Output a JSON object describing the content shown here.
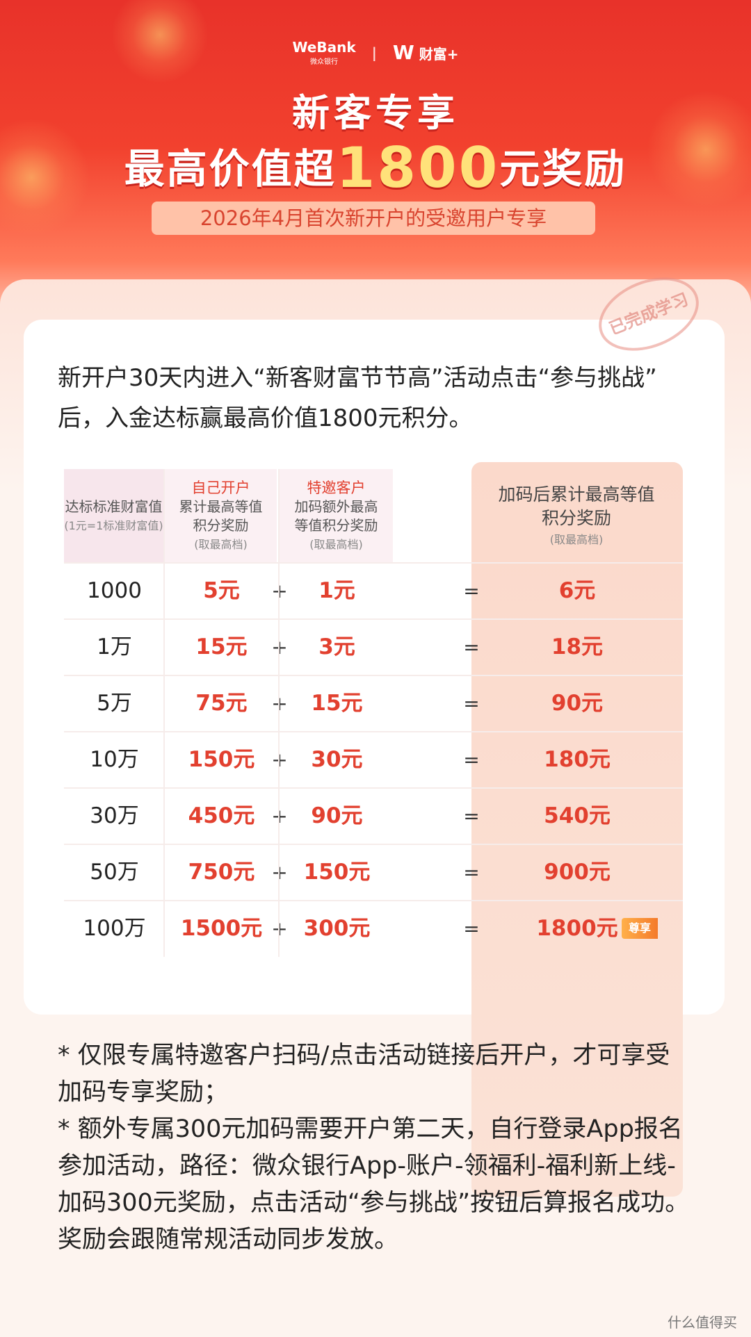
{
  "header": {
    "logo_bank": "WeBank",
    "logo_bank_cn": "微众银行",
    "logo_wealth": "财富+",
    "title": "新客专享",
    "headline_pre": "最高价值超",
    "headline_amount": "1800",
    "headline_post": "元奖励",
    "subtitle": "2026年4月首次新开户的受邀用户专享"
  },
  "stamp": "已完成学习",
  "intro": "新开户30天内进入“新客财富节节高”活动点击“参与挑战”后，入金达标赢最高价值1800元积分。",
  "table": {
    "headers": [
      {
        "lines": [
          "达标标准财富值",
          "(1元=1标准财富值)"
        ]
      },
      {
        "lines": [
          "自己开户",
          "累计最高等值",
          "积分奖励",
          "(取最高档)"
        ]
      },
      {
        "lines": [
          "特邀客户",
          "加码额外最高",
          "等值积分奖励",
          "(取最高档)"
        ]
      },
      {
        "lines": [
          "加码后累计最高等值",
          "积分奖励",
          "(取最高档)"
        ]
      }
    ],
    "plus": "+",
    "equals": "=",
    "rows": [
      [
        "1000",
        "5元",
        "1元",
        "6元"
      ],
      [
        "1万",
        "15元",
        "3元",
        "18元"
      ],
      [
        "5万",
        "75元",
        "15元",
        "90元"
      ],
      [
        "10万",
        "150元",
        "30元",
        "180元"
      ],
      [
        "30万",
        "450元",
        "90元",
        "540元"
      ],
      [
        "50万",
        "750元",
        "150元",
        "900元"
      ],
      [
        "100万",
        "1500元",
        "300元",
        "1800元"
      ]
    ],
    "badge": "尊享"
  },
  "notes": [
    "* 仅限专属特邀客户扫码/点击活动链接后开户，才可享受加码专享奖励；",
    "* 额外专属300元加码需要开户第二天，自行登录App报名参加活动，路径：微众银行App-账户-领福利-福利新上线-加码300元奖励，点击活动“参与挑战”按钮后算报名成功。奖励会跟随常规活动同步发放。"
  ],
  "watermark": "什么值得买"
}
